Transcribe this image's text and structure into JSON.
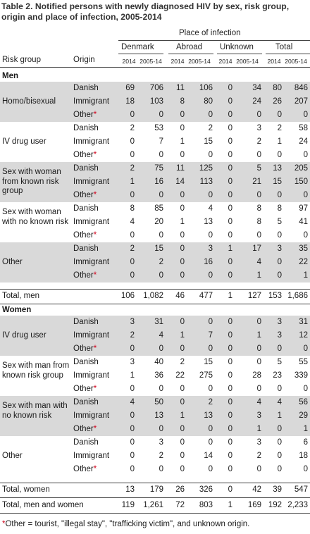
{
  "title": "Table 2. Notified persons with newly diagnosed HIV by sex, risk group, origin and place of infection, 2005-2014",
  "header": {
    "place": "Place of infection",
    "risk_group": "Risk group",
    "origin": "Origin",
    "groups": [
      "Denmark",
      "Abroad",
      "Unknown",
      "Total"
    ],
    "sub": [
      "2014",
      "2005-14",
      "2014",
      "2005-14",
      "2014",
      "2005-14",
      "2014",
      "2005-14"
    ]
  },
  "sections": [
    {
      "label": "Men",
      "groups": [
        {
          "label": "Homo/bisexual",
          "rows": [
            {
              "origin": "Danish",
              "v": [
                "69",
                "706",
                "11",
                "106",
                "0",
                "34",
                "80",
                "846"
              ]
            },
            {
              "origin": "Immigrant",
              "v": [
                "18",
                "103",
                "8",
                "80",
                "0",
                "24",
                "26",
                "207"
              ]
            },
            {
              "origin": "Other",
              "ast": "*",
              "v": [
                "0",
                "0",
                "0",
                "0",
                "0",
                "0",
                "0",
                "0"
              ]
            }
          ]
        },
        {
          "label": "IV drug user",
          "rows": [
            {
              "origin": "Danish",
              "v": [
                "2",
                "53",
                "0",
                "2",
                "0",
                "3",
                "2",
                "58"
              ]
            },
            {
              "origin": "Immigrant",
              "v": [
                "0",
                "7",
                "1",
                "15",
                "0",
                "2",
                "1",
                "24"
              ]
            },
            {
              "origin": "Other",
              "ast": "*",
              "v": [
                "0",
                "0",
                "0",
                "0",
                "0",
                "0",
                "0",
                "0"
              ]
            }
          ]
        },
        {
          "label": "Sex with woman from known risk group",
          "rows": [
            {
              "origin": "Danish",
              "v": [
                "2",
                "75",
                "11",
                "125",
                "0",
                "5",
                "13",
                "205"
              ]
            },
            {
              "origin": "Immigrant",
              "v": [
                "1",
                "16",
                "14",
                "113",
                "0",
                "21",
                "15",
                "150"
              ]
            },
            {
              "origin": "Other",
              "ast": "*",
              "v": [
                "0",
                "0",
                "0",
                "0",
                "0",
                "0",
                "0",
                "0"
              ]
            }
          ]
        },
        {
          "label": "Sex with woman with no known risk",
          "rows": [
            {
              "origin": "Danish",
              "v": [
                "8",
                "85",
                "0",
                "4",
                "0",
                "8",
                "8",
                "97"
              ]
            },
            {
              "origin": "Immigrant",
              "v": [
                "4",
                "20",
                "1",
                "13",
                "0",
                "8",
                "5",
                "41"
              ]
            },
            {
              "origin": "Other",
              "ast": "*",
              "v": [
                "0",
                "0",
                "0",
                "0",
                "0",
                "0",
                "0",
                "0"
              ]
            }
          ]
        },
        {
          "label": "Other",
          "rows": [
            {
              "origin": "Danish",
              "v": [
                "2",
                "15",
                "0",
                "3",
                "1",
                "17",
                "3",
                "35"
              ]
            },
            {
              "origin": "Immigrant",
              "v": [
                "0",
                "2",
                "0",
                "16",
                "0",
                "4",
                "0",
                "22"
              ]
            },
            {
              "origin": "Other",
              "ast": "*",
              "v": [
                "0",
                "0",
                "0",
                "0",
                "0",
                "1",
                "0",
                "1"
              ]
            }
          ]
        }
      ],
      "total": {
        "label": "Total, men",
        "v": [
          "106",
          "1,082",
          "46",
          "477",
          "1",
          "127",
          "153",
          "1,686"
        ]
      }
    },
    {
      "label": "Women",
      "groups": [
        {
          "label": "IV drug user",
          "rows": [
            {
              "origin": "Danish",
              "v": [
                "3",
                "31",
                "0",
                "0",
                "0",
                "0",
                "3",
                "31"
              ]
            },
            {
              "origin": "Immigrant",
              "v": [
                "2",
                "4",
                "1",
                "7",
                "0",
                "1",
                "3",
                "12"
              ]
            },
            {
              "origin": "Other",
              "ast": "*",
              "v": [
                "0",
                "0",
                "0",
                "0",
                "0",
                "0",
                "0",
                "0"
              ]
            }
          ]
        },
        {
          "label": "Sex with man from known risk group",
          "rows": [
            {
              "origin": "Danish",
              "v": [
                "3",
                "40",
                "2",
                "15",
                "0",
                "0",
                "5",
                "55"
              ]
            },
            {
              "origin": "Immigrant",
              "v": [
                "1",
                "36",
                "22",
                "275",
                "0",
                "28",
                "23",
                "339"
              ]
            },
            {
              "origin": "Other",
              "ast": "*",
              "v": [
                "0",
                "0",
                "0",
                "0",
                "0",
                "0",
                "0",
                "0"
              ]
            }
          ]
        },
        {
          "label": "Sex with man with no known risk",
          "rows": [
            {
              "origin": "Danish",
              "v": [
                "4",
                "50",
                "0",
                "2",
                "0",
                "4",
                "4",
                "56"
              ]
            },
            {
              "origin": "Immigrant",
              "v": [
                "0",
                "13",
                "1",
                "13",
                "0",
                "3",
                "1",
                "29"
              ]
            },
            {
              "origin": "Other",
              "ast": "*",
              "v": [
                "0",
                "0",
                "0",
                "0",
                "0",
                "1",
                "0",
                "1"
              ]
            }
          ]
        },
        {
          "label": "Other",
          "rows": [
            {
              "origin": "Danish",
              "v": [
                "0",
                "3",
                "0",
                "0",
                "0",
                "3",
                "0",
                "6"
              ]
            },
            {
              "origin": "Immigrant",
              "v": [
                "0",
                "2",
                "0",
                "14",
                "0",
                "2",
                "0",
                "18"
              ]
            },
            {
              "origin": "Other",
              "ast": "*",
              "v": [
                "0",
                "0",
                "0",
                "0",
                "0",
                "0",
                "0",
                "0"
              ]
            }
          ]
        }
      ],
      "total": {
        "label": "Total, women",
        "v": [
          "13",
          "179",
          "26",
          "326",
          "0",
          "42",
          "39",
          "547"
        ]
      }
    }
  ],
  "grand_total": {
    "label": "Total, men and women",
    "v": [
      "119",
      "1,261",
      "72",
      "803",
      "1",
      "169",
      "192",
      "2,233"
    ]
  },
  "footnote": {
    "ast": "*",
    "text": "Other = tourist, \"illegal stay\", \"trafficking victim\", and unknown origin."
  }
}
